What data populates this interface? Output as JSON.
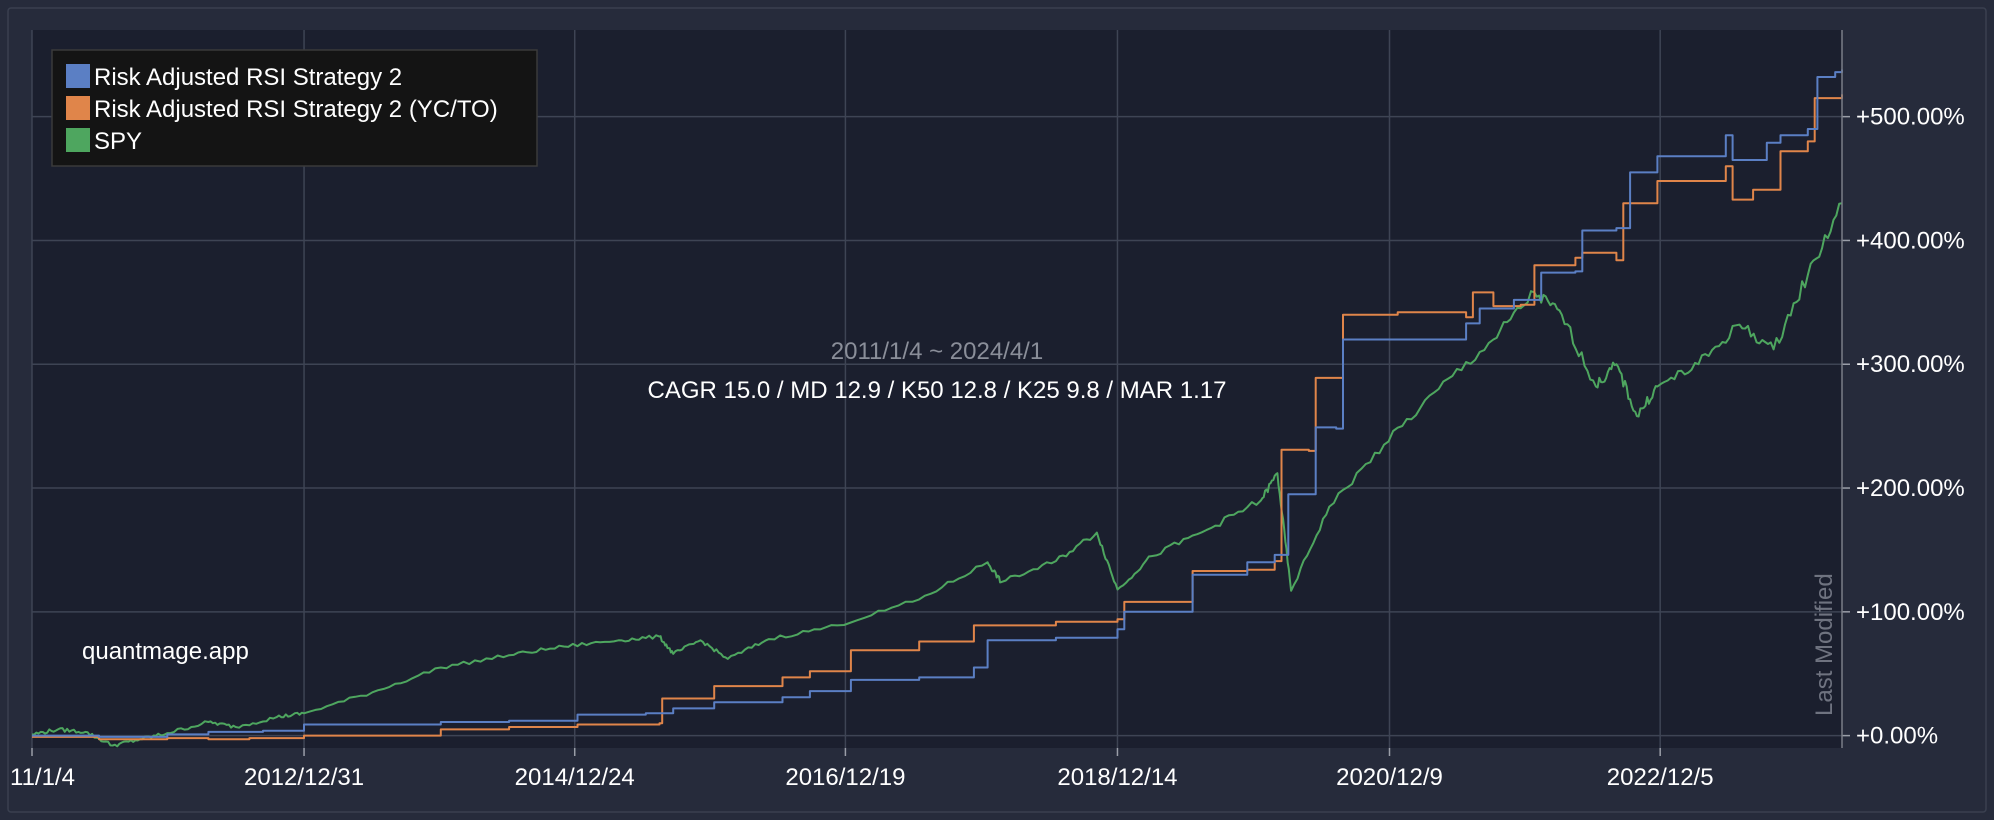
{
  "colors": {
    "background": "#262b3b",
    "plot_background": "#1b1f2e",
    "grid": "#3e4454",
    "axis_text": "#ffffff",
    "series": [
      "#5b7fc4",
      "#e0854a",
      "#4ea65f"
    ]
  },
  "watermark": "quantmage.app",
  "vertical_label": "Last Modified",
  "chart_data": {
    "type": "line",
    "subtitle": "2011/1/4 ~ 2024/4/1",
    "stats": "CAGR 15.0 / MD 12.9 / K50 12.8 / K25 9.8 / MAR 1.17",
    "x_ticks": [
      "11/1/4",
      "2012/12/31",
      "2014/12/24",
      "2016/12/19",
      "2018/12/14",
      "2020/12/9",
      "2022/12/5"
    ],
    "x_tick_years": [
      2011.01,
      2013.0,
      2014.98,
      2016.96,
      2018.95,
      2020.94,
      2022.92
    ],
    "xlim": [
      2011.01,
      2024.25
    ],
    "y_ticks": [
      "+0.00%",
      "+100.00%",
      "+200.00%",
      "+300.00%",
      "+400.00%",
      "+500.00%"
    ],
    "y_tick_values": [
      0,
      100,
      200,
      300,
      400,
      500
    ],
    "ylim": [
      -10,
      570
    ],
    "grid": true,
    "legend_position": "top-left",
    "series": [
      {
        "name": "Risk Adjusted RSI Strategy 2",
        "color": "#5b7fc4",
        "points": [
          [
            2011.01,
            0
          ],
          [
            2011.5,
            -1
          ],
          [
            2012.0,
            1
          ],
          [
            2012.3,
            3
          ],
          [
            2012.5,
            3
          ],
          [
            2012.7,
            4
          ],
          [
            2013.0,
            9
          ],
          [
            2014.0,
            11
          ],
          [
            2014.5,
            12
          ],
          [
            2015.0,
            17
          ],
          [
            2015.5,
            18
          ],
          [
            2015.7,
            22
          ],
          [
            2016.0,
            27
          ],
          [
            2016.5,
            31
          ],
          [
            2016.7,
            36
          ],
          [
            2017.0,
            45
          ],
          [
            2017.5,
            47
          ],
          [
            2017.9,
            55
          ],
          [
            2018.0,
            77
          ],
          [
            2018.5,
            79
          ],
          [
            2018.95,
            86
          ],
          [
            2019.0,
            100
          ],
          [
            2019.5,
            130
          ],
          [
            2019.9,
            140
          ],
          [
            2020.1,
            146
          ],
          [
            2020.2,
            195
          ],
          [
            2020.4,
            249
          ],
          [
            2020.55,
            248
          ],
          [
            2020.6,
            320
          ],
          [
            2021.0,
            320
          ],
          [
            2021.5,
            333
          ],
          [
            2021.6,
            345
          ],
          [
            2021.85,
            352
          ],
          [
            2022.05,
            374
          ],
          [
            2022.3,
            375
          ],
          [
            2022.35,
            408
          ],
          [
            2022.6,
            410
          ],
          [
            2022.7,
            455
          ],
          [
            2022.9,
            468
          ],
          [
            2023.4,
            485
          ],
          [
            2023.45,
            465
          ],
          [
            2023.6,
            465
          ],
          [
            2023.7,
            479
          ],
          [
            2023.8,
            485
          ],
          [
            2024.0,
            490
          ],
          [
            2024.07,
            532
          ],
          [
            2024.2,
            536
          ],
          [
            2024.25,
            538
          ]
        ]
      },
      {
        "name": "Risk Adjusted RSI Strategy 2 (YC/TO)",
        "color": "#e0854a",
        "points": [
          [
            2011.01,
            -1
          ],
          [
            2011.5,
            -3
          ],
          [
            2012.0,
            -2
          ],
          [
            2012.3,
            -3
          ],
          [
            2012.6,
            -2
          ],
          [
            2013.0,
            0
          ],
          [
            2014.0,
            5
          ],
          [
            2014.5,
            7
          ],
          [
            2015.0,
            9
          ],
          [
            2015.6,
            10
          ],
          [
            2015.62,
            30
          ],
          [
            2016.0,
            40
          ],
          [
            2016.5,
            47
          ],
          [
            2016.7,
            52
          ],
          [
            2017.0,
            69
          ],
          [
            2017.5,
            76
          ],
          [
            2017.9,
            89
          ],
          [
            2018.5,
            92
          ],
          [
            2018.95,
            94
          ],
          [
            2019.0,
            108
          ],
          [
            2019.5,
            133
          ],
          [
            2019.9,
            134
          ],
          [
            2020.1,
            141
          ],
          [
            2020.15,
            231
          ],
          [
            2020.35,
            230
          ],
          [
            2020.4,
            289
          ],
          [
            2020.55,
            289
          ],
          [
            2020.6,
            340
          ],
          [
            2021.0,
            342
          ],
          [
            2021.5,
            338
          ],
          [
            2021.55,
            358
          ],
          [
            2021.7,
            347
          ],
          [
            2021.9,
            348
          ],
          [
            2022.0,
            380
          ],
          [
            2022.3,
            386
          ],
          [
            2022.35,
            390
          ],
          [
            2022.6,
            384
          ],
          [
            2022.65,
            430
          ],
          [
            2022.9,
            448
          ],
          [
            2023.4,
            460
          ],
          [
            2023.45,
            433
          ],
          [
            2023.6,
            441
          ],
          [
            2023.8,
            472
          ],
          [
            2024.0,
            480
          ],
          [
            2024.05,
            515
          ],
          [
            2024.25,
            518
          ]
        ]
      },
      {
        "name": "SPY",
        "color": "#4ea65f",
        "points": [
          [
            2011.01,
            1
          ],
          [
            2011.2,
            5
          ],
          [
            2011.4,
            3
          ],
          [
            2011.6,
            -8
          ],
          [
            2011.8,
            -3
          ],
          [
            2012.0,
            2
          ],
          [
            2012.3,
            11
          ],
          [
            2012.5,
            7
          ],
          [
            2012.8,
            15
          ],
          [
            2013.0,
            18
          ],
          [
            2013.5,
            35
          ],
          [
            2014.0,
            55
          ],
          [
            2014.5,
            65
          ],
          [
            2014.9,
            72
          ],
          [
            2015.3,
            77
          ],
          [
            2015.6,
            80
          ],
          [
            2015.7,
            66
          ],
          [
            2015.9,
            77
          ],
          [
            2016.1,
            62
          ],
          [
            2016.4,
            78
          ],
          [
            2016.9,
            89
          ],
          [
            2017.5,
            110
          ],
          [
            2018.0,
            140
          ],
          [
            2018.1,
            124
          ],
          [
            2018.5,
            141
          ],
          [
            2018.8,
            164
          ],
          [
            2018.95,
            118
          ],
          [
            2019.2,
            145
          ],
          [
            2019.6,
            166
          ],
          [
            2020.0,
            190
          ],
          [
            2020.12,
            212
          ],
          [
            2020.22,
            117
          ],
          [
            2020.5,
            185
          ],
          [
            2020.9,
            235
          ],
          [
            2021.3,
            280
          ],
          [
            2021.7,
            320
          ],
          [
            2022.0,
            358
          ],
          [
            2022.2,
            340
          ],
          [
            2022.45,
            282
          ],
          [
            2022.6,
            300
          ],
          [
            2022.75,
            258
          ],
          [
            2022.9,
            282
          ],
          [
            2023.2,
            300
          ],
          [
            2023.5,
            332
          ],
          [
            2023.75,
            312
          ],
          [
            2024.0,
            372
          ],
          [
            2024.25,
            430
          ]
        ]
      }
    ]
  }
}
